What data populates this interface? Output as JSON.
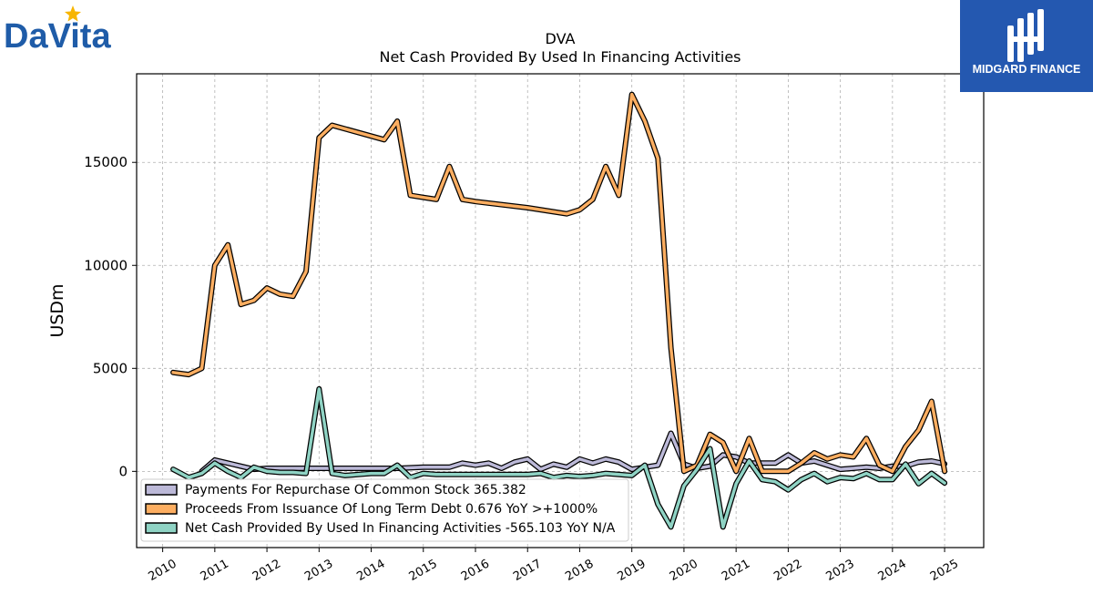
{
  "header": {
    "left_logo_text": "DaVita",
    "right_logo_text": "MIDGARD FINANCE"
  },
  "colors": {
    "payments": "#bcb9d8",
    "proceeds": "#fdae61",
    "net_cash": "#8fd3c4",
    "outline": "#000000",
    "grid": "#b0b0b0",
    "brand_blue": "#2458b0",
    "davita_blue": "#1f5ca8",
    "davita_star": "#f7b500"
  },
  "chart_data": {
    "type": "line",
    "title": "DVA",
    "subtitle": "Net Cash Provided By Used In Financing Activities",
    "xlabel": "",
    "ylabel": "USDm",
    "xlim": [
      2009.5,
      2025.75
    ],
    "ylim": [
      -3700,
      19300
    ],
    "grid": true,
    "legend_position": "lower-left",
    "x_ticks": [
      "2010",
      "2011",
      "2012",
      "2013",
      "2014",
      "2015",
      "2016",
      "2017",
      "2018",
      "2019",
      "2020",
      "2021",
      "2022",
      "2023",
      "2024",
      "2025"
    ],
    "y_ticks": [
      0,
      5000,
      10000,
      15000
    ],
    "series": [
      {
        "name": "Payments For Repurchase Of Common Stock  365.382",
        "color_key": "payments",
        "x": [
          2010.75,
          2011.0,
          2011.25,
          2011.5,
          2011.75,
          2012.0,
          2012.25,
          2012.5,
          2012.75,
          2013.0,
          2013.5,
          2014.0,
          2014.5,
          2015.0,
          2015.5,
          2015.75,
          2016.0,
          2016.25,
          2016.5,
          2016.75,
          2017.0,
          2017.25,
          2017.5,
          2017.75,
          2018.0,
          2018.25,
          2018.5,
          2018.75,
          2019.0,
          2019.25,
          2019.5,
          2019.75,
          2020.0,
          2020.25,
          2020.5,
          2020.75,
          2021.0,
          2021.25,
          2021.5,
          2021.75,
          2022.0,
          2022.25,
          2022.5,
          2022.75,
          2023.0,
          2023.25,
          2023.5,
          2023.75,
          2024.0,
          2024.25,
          2024.5,
          2024.75,
          2025.0
        ],
        "y": [
          0,
          550,
          400,
          250,
          100,
          150,
          150,
          150,
          150,
          150,
          150,
          150,
          150,
          200,
          200,
          400,
          300,
          400,
          150,
          450,
          600,
          100,
          350,
          200,
          600,
          400,
          600,
          450,
          100,
          200,
          300,
          1850,
          350,
          150,
          250,
          800,
          700,
          400,
          400,
          400,
          800,
          400,
          500,
          300,
          100,
          150,
          200,
          150,
          250,
          250,
          450,
          500,
          365
        ]
      },
      {
        "name": "Proceeds From Issuance Of Long Term Debt  0.676 YoY >+1000%",
        "color_key": "proceeds",
        "x": [
          2010.2,
          2010.5,
          2010.75,
          2011.0,
          2011.25,
          2011.5,
          2011.75,
          2012.0,
          2012.25,
          2012.5,
          2012.75,
          2013.0,
          2013.25,
          2014.25,
          2014.5,
          2014.75,
          2015.0,
          2015.25,
          2015.5,
          2015.75,
          2016.0,
          2017.0,
          2017.75,
          2018.0,
          2018.25,
          2018.5,
          2018.75,
          2019.0,
          2019.25,
          2019.5,
          2019.75,
          2020.0,
          2020.25,
          2020.5,
          2020.75,
          2021.0,
          2021.25,
          2021.5,
          2021.75,
          2022.0,
          2022.25,
          2022.5,
          2022.75,
          2023.0,
          2023.25,
          2023.5,
          2023.75,
          2024.0,
          2024.25,
          2024.5,
          2024.75,
          2025.0
        ],
        "y": [
          4800,
          4700,
          5000,
          10000,
          11000,
          8100,
          8300,
          8900,
          8600,
          8500,
          9700,
          16200,
          16800,
          16100,
          17000,
          13400,
          13300,
          13200,
          14800,
          13200,
          13100,
          12800,
          12500,
          12700,
          13200,
          14800,
          13400,
          18300,
          17000,
          15200,
          6000,
          0,
          300,
          1800,
          1400,
          0,
          1600,
          0,
          0,
          0,
          400,
          900,
          600,
          800,
          700,
          1600,
          300,
          0,
          1200,
          2000,
          3400,
          1
        ]
      },
      {
        "name": "Net Cash Provided By Used In Financing Activities  -565.103 YoY N/A",
        "color_key": "net_cash",
        "x": [
          2010.2,
          2010.5,
          2010.75,
          2011.0,
          2011.25,
          2011.5,
          2011.75,
          2012.0,
          2012.25,
          2012.5,
          2012.75,
          2013.0,
          2013.25,
          2013.5,
          2014.0,
          2014.25,
          2014.5,
          2014.75,
          2015.0,
          2015.25,
          2015.5,
          2016.0,
          2016.5,
          2017.0,
          2017.25,
          2017.5,
          2017.75,
          2018.0,
          2018.25,
          2018.5,
          2018.75,
          2019.0,
          2019.25,
          2019.5,
          2019.75,
          2020.0,
          2020.25,
          2020.5,
          2020.75,
          2021.0,
          2021.25,
          2021.5,
          2021.75,
          2022.0,
          2022.25,
          2022.5,
          2022.75,
          2023.0,
          2023.25,
          2023.5,
          2023.75,
          2024.0,
          2024.25,
          2024.5,
          2024.75,
          2025.0
        ],
        "y": [
          100,
          -300,
          -100,
          400,
          0,
          -300,
          200,
          0,
          -50,
          -50,
          -100,
          4000,
          -100,
          -200,
          -100,
          -100,
          300,
          -300,
          -100,
          -150,
          -150,
          -150,
          -150,
          -150,
          -100,
          -300,
          -200,
          -250,
          -200,
          -100,
          -150,
          -200,
          300,
          -1600,
          -2700,
          -700,
          100,
          1100,
          -2700,
          -600,
          500,
          -400,
          -500,
          -900,
          -400,
          -100,
          -500,
          -300,
          -350,
          -100,
          -400,
          -400,
          350,
          -600,
          -100,
          -565
        ]
      }
    ]
  }
}
